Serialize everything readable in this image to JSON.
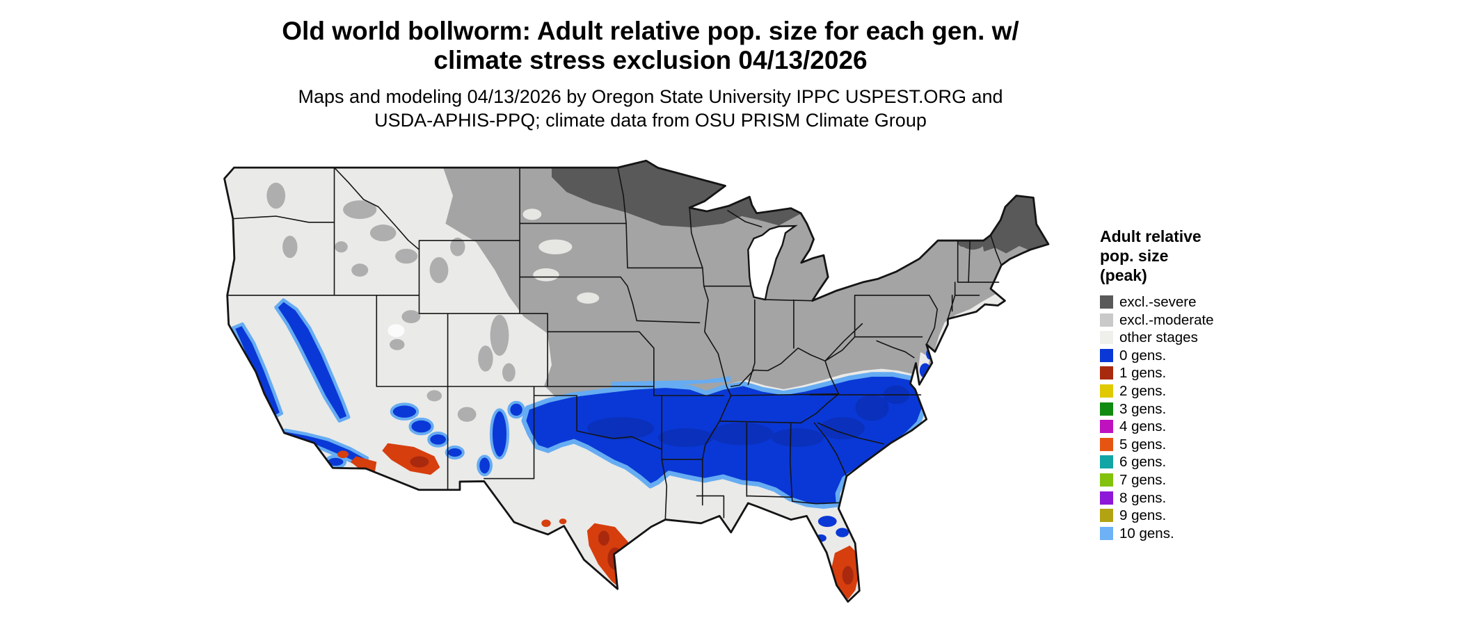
{
  "title": {
    "line1": "Old world bollworm: Adult relative pop. size for each gen. w/",
    "line2": "climate stress exclusion 04/13/2026"
  },
  "subtitle": {
    "line1": "Maps and modeling 04/13/2026 by Oregon State University IPPC USPEST.ORG and",
    "line2": "USDA-APHIS-PPQ; climate data from OSU PRISM Climate Group"
  },
  "legend": {
    "title_lines": [
      "Adult relative",
      "pop. size",
      "(peak)"
    ],
    "items": [
      {
        "label": "excl.-severe",
        "color": "#595959"
      },
      {
        "label": "excl.-moderate",
        "color": "#C9C9C9"
      },
      {
        "label": "other stages",
        "color": "#EFEFEC"
      },
      {
        "label": "0 gens.",
        "color": "#0A38D6"
      },
      {
        "label": "1 gens.",
        "color": "#A8290E"
      },
      {
        "label": "2 gens.",
        "color": "#E0C900"
      },
      {
        "label": "3 gens.",
        "color": "#108A10"
      },
      {
        "label": "4 gens.",
        "color": "#BE12BE"
      },
      {
        "label": "5 gens.",
        "color": "#E55511"
      },
      {
        "label": "6 gens.",
        "color": "#12A5A5"
      },
      {
        "label": "7 gens.",
        "color": "#82C20D"
      },
      {
        "label": "8 gens.",
        "color": "#8D18D8"
      },
      {
        "label": "9 gens.",
        "color": "#B2A312"
      },
      {
        "label": "10 gens.",
        "color": "#6FB1F5"
      }
    ]
  },
  "map": {
    "colors": {
      "excl_severe": "#595959",
      "excl_moderate": "#A4A4A4",
      "other_stages": "#EAEAE8",
      "light_patch": "#E6E6E3",
      "gens0": "#0A38D6",
      "gens0_dark": "#0A2BA8",
      "gens1": "#A8290E",
      "gens5": "#D63E0E",
      "gens10": "#66ACF2",
      "border": "#141414",
      "water": "#FFFFFF"
    }
  }
}
